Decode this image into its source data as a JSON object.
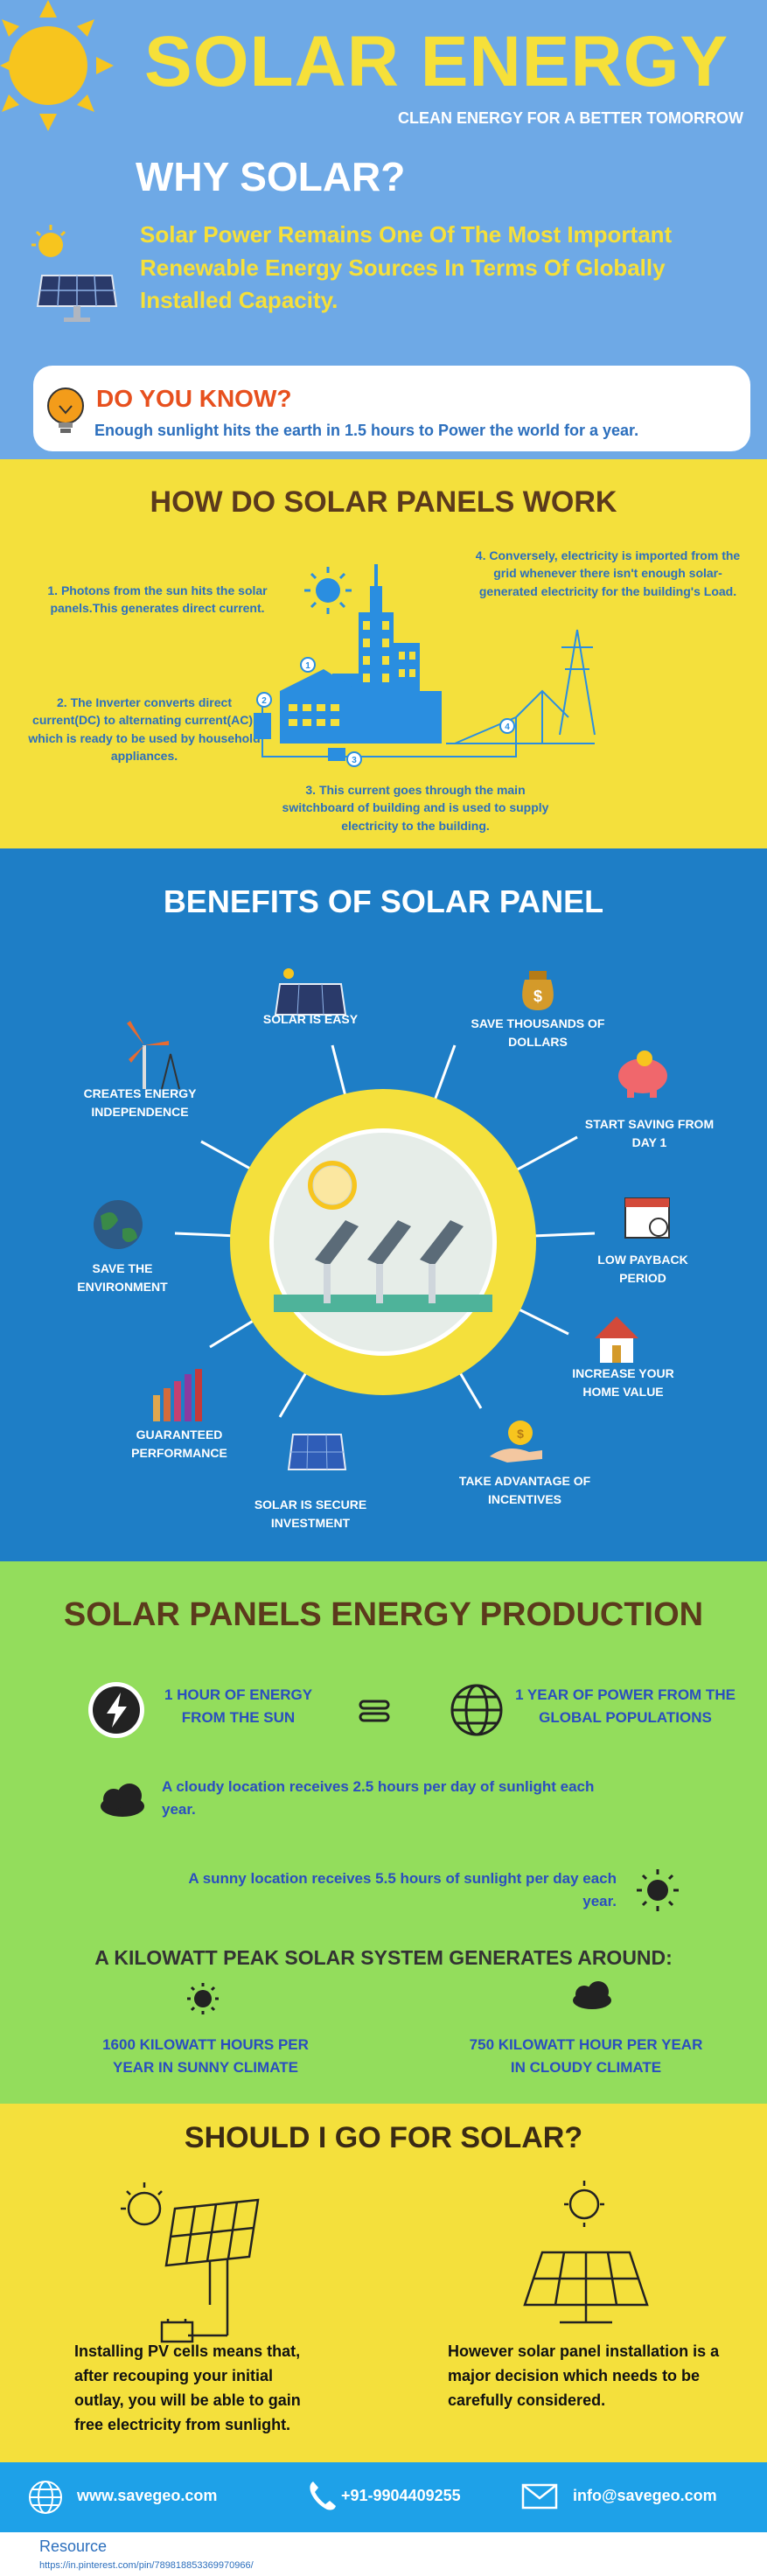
{
  "header": {
    "title": "SOLAR ENERGY",
    "subtitle": "CLEAN ENERGY FOR A BETTER TOMORROW",
    "why_title": "WHY SOLAR?",
    "why_text": "Solar Power Remains One Of The Most Important Renewable Energy Sources In Terms Of Globally Installed Capacity."
  },
  "did_you_know": {
    "title": "DO YOU KNOW?",
    "text": "Enough sunlight hits the earth in 1.5 hours to Power the world for a year."
  },
  "how": {
    "title": "HOW DO SOLAR PANELS WORK",
    "steps": [
      "1. Photons from the sun hits the solar panels.This generates direct current.",
      "2. The Inverter converts direct current(DC) to alternating current(AC), which is ready to be used by household appliances.",
      "3. This current goes through the main switchboard of building and is used to supply electricity to the building.",
      "4. Conversely, electricity is imported from the grid whenever there isn't enough solar- generated electricity for the building's Load."
    ],
    "markers": [
      "1",
      "2",
      "3",
      "4"
    ]
  },
  "benefits": {
    "title": "BENEFITS OF SOLAR PANEL",
    "items": [
      {
        "label": "SOLAR IS EASY",
        "icon": "solar-panel-icon"
      },
      {
        "label": "SAVE THOUSANDS OF DOLLARS",
        "icon": "money-bag-icon"
      },
      {
        "label": "START SAVING FROM DAY 1",
        "icon": "piggy-bank-icon"
      },
      {
        "label": "LOW PAYBACK PERIOD",
        "icon": "calendar-icon"
      },
      {
        "label": "INCREASE YOUR HOME VALUE",
        "icon": "house-icon"
      },
      {
        "label": "TAKE ADVANTAGE OF INCENTIVES",
        "icon": "coin-hand-icon"
      },
      {
        "label": "SOLAR IS SECURE INVESTMENT",
        "icon": "solar-panel-icon"
      },
      {
        "label": "GUARANTEED PERFORMANCE",
        "icon": "bar-chart-icon"
      },
      {
        "label": "SAVE THE ENVIRONMENT",
        "icon": "globe-icon"
      },
      {
        "label": "CREATES ENERGY INDEPENDENCE",
        "icon": "wind-turbine-icon"
      }
    ]
  },
  "production": {
    "title": "SOLAR PANELS ENERGY PRODUCTION",
    "equation_left": "1 HOUR OF ENERGY FROM THE SUN",
    "equation_right": "1 YEAR OF POWER FROM THE GLOBAL POPULATIONS",
    "cloudy_text": "A cloudy location receives 2.5 hours per day of sunlight each year.",
    "sunny_text": "A sunny location receives 5.5 hours of sunlight per day each year.",
    "kilowatt_title": "A KILOWATT PEAK SOLAR SYSTEM GENERATES AROUND:",
    "sunny_output": "1600 KILOWATT HOURS PER YEAR IN SUNNY CLIMATE",
    "cloudy_output": "750 KILOWATT HOUR PER YEAR IN CLOUDY CLIMATE"
  },
  "should": {
    "title": "SHOULD I GO FOR SOLAR?",
    "left_text": "Installing PV cells means that, after recouping your initial outlay, you will be able to gain free electricity from sunlight.",
    "right_text": "However solar panel installation is a major decision which needs to be carefully considered."
  },
  "footer": {
    "website": "www.savegeo.com",
    "phone": "+91-9904409255",
    "email": "info@savegeo.com"
  },
  "resource": {
    "label": "Resource",
    "link": "https://in.pinterest.com/pin/789818853369970966/"
  },
  "colors": {
    "header_bg": "#6ea9e6",
    "yellow": "#f4e03c",
    "title_yellow": "#f6e03a",
    "benefit_bg": "#1e7ec6",
    "production_bg": "#93dd5c",
    "footer_bg": "#1ea1e8",
    "text_blue": "#2c6fbd",
    "accent_orange": "#e7501e"
  }
}
